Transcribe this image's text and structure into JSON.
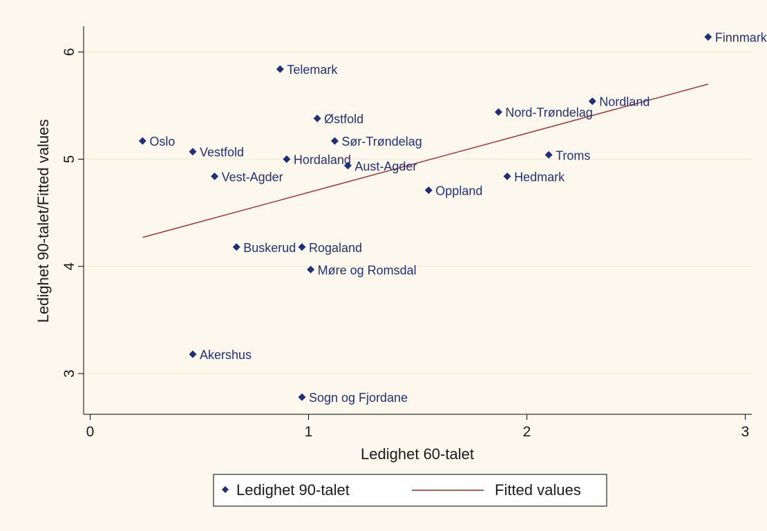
{
  "chart_data": {
    "type": "scatter",
    "xlabel": "Ledighet 60-talet",
    "ylabel": "Ledighet 90-talet/Fitted values",
    "xlim": [
      -0.03,
      3.03
    ],
    "ylim": [
      2.62,
      6.24
    ],
    "xticks": [
      0,
      1,
      2,
      3
    ],
    "yticks": [
      3,
      4,
      5,
      6
    ],
    "grid": "horizontal",
    "legend_position": "bottom",
    "series": [
      {
        "name": "Ledighet 90-talet",
        "kind": "scatter",
        "color": "#1f2f7a",
        "points": [
          {
            "label": "Finnmark",
            "x": 2.83,
            "y": 6.14
          },
          {
            "label": "Telemark",
            "x": 0.87,
            "y": 5.84
          },
          {
            "label": "Nordland",
            "x": 2.3,
            "y": 5.54
          },
          {
            "label": "Nord-Trøndelag",
            "x": 1.87,
            "y": 5.44
          },
          {
            "label": "Østfold",
            "x": 1.04,
            "y": 5.38
          },
          {
            "label": "Oslo",
            "x": 0.24,
            "y": 5.17
          },
          {
            "label": "Sør-Trøndelag",
            "x": 1.12,
            "y": 5.17
          },
          {
            "label": "Vestfold",
            "x": 0.47,
            "y": 5.07
          },
          {
            "label": "Troms",
            "x": 2.1,
            "y": 5.04
          },
          {
            "label": "Hordaland",
            "x": 0.9,
            "y": 5.0
          },
          {
            "label": "Aust-Agder",
            "x": 1.18,
            "y": 4.94
          },
          {
            "label": "Vest-Agder",
            "x": 0.57,
            "y": 4.84
          },
          {
            "label": "Hedmark",
            "x": 1.91,
            "y": 4.84
          },
          {
            "label": "Oppland",
            "x": 1.55,
            "y": 4.71
          },
          {
            "label": "Buskerud",
            "x": 0.67,
            "y": 4.18
          },
          {
            "label": "Rogaland",
            "x": 0.97,
            "y": 4.18
          },
          {
            "label": "Møre og Romsdal",
            "x": 1.01,
            "y": 3.97
          },
          {
            "label": "Akershus",
            "x": 0.47,
            "y": 3.18
          },
          {
            "label": "Sogn og Fjordane",
            "x": 0.97,
            "y": 2.78
          }
        ]
      },
      {
        "name": "Fitted values",
        "kind": "line",
        "color": "#a02828",
        "x": [
          0.24,
          2.83
        ],
        "y": [
          4.27,
          5.7
        ]
      }
    ]
  },
  "colors": {
    "background": "#fcf8ee",
    "plot_background": "#fcf8ee",
    "gridline": "#f1ead0",
    "axis": "#000000",
    "marker": "#1f2f7a",
    "fit_line": "#a02828"
  }
}
